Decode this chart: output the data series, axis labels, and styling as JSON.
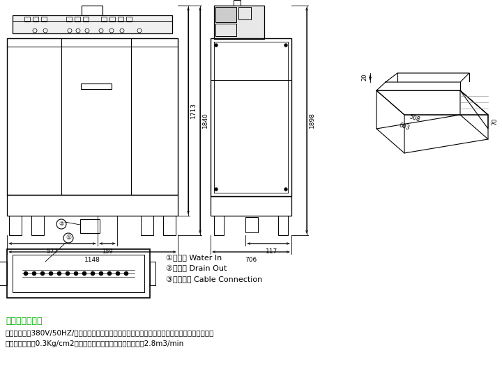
{
  "bg_color": "#ffffff",
  "line_color": "#000000",
  "title_color": "#00aa00",
  "title": "安装接驳要求：",
  "body_line1": "电力安装需要380V/50HZ/三相五线，外部需加装独立的空气开关机器可直接与一般供水系统连接，",
  "body_line2": "最低水压须达到0.3Kg/cm2如需安装排气罩，其排气量至少应为2.8m3/min",
  "legend1": "①进水口 Water In",
  "legend2": "②排水口 Drain Out",
  "legend3": "③电源连接 Cable Connection",
  "dim_1713": "1713",
  "dim_1840": "1840",
  "dim_577": "577",
  "dim_159": "159",
  "dim_1148": "1148",
  "dim_1898": "1898",
  "dim_117": "117",
  "dim_706": "706",
  "dim_20": "20",
  "dim_70": "70",
  "dim_508": "508",
  "dim_603": "603"
}
